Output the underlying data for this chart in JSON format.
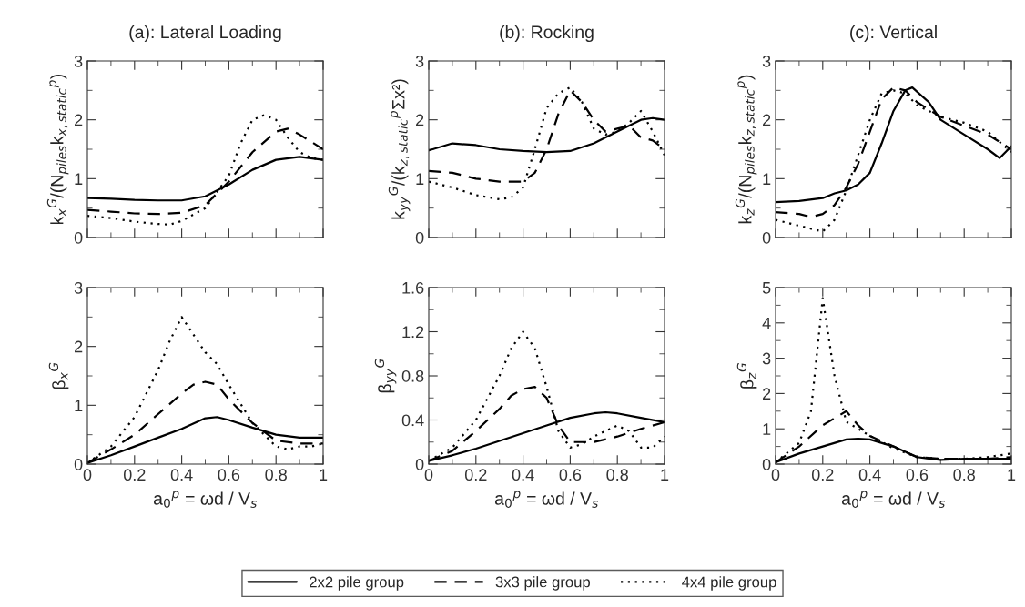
{
  "chart_data": [
    {
      "type": "line",
      "title": "(a): Lateral Loading",
      "ylabel": "k$_{x}$$^{G}$/(N$_{piles}$k$_{x,static}$$^{p}$)",
      "xlim": [
        0,
        1
      ],
      "xticks": [
        0,
        0.2,
        0.4,
        0.6,
        0.8,
        1
      ],
      "ylim": [
        0,
        3
      ],
      "yticks": [
        0,
        1,
        2,
        3
      ],
      "tick_labels": "y",
      "legend": "bottom",
      "series": [
        {
          "name": "2x2 pile group",
          "color": "#000000",
          "line_style": "solid",
          "x": [
            0,
            0.1,
            0.2,
            0.3,
            0.4,
            0.5,
            0.6,
            0.7,
            0.8,
            0.9,
            1.0
          ],
          "values": [
            0.67,
            0.66,
            0.64,
            0.63,
            0.63,
            0.7,
            0.9,
            1.15,
            1.32,
            1.37,
            1.32
          ]
        },
        {
          "name": "3x3 pile group",
          "color": "#000000",
          "line_style": "dashed",
          "x": [
            0,
            0.1,
            0.2,
            0.3,
            0.4,
            0.5,
            0.6,
            0.7,
            0.8,
            0.85,
            0.9,
            1.0
          ],
          "values": [
            0.47,
            0.44,
            0.41,
            0.4,
            0.42,
            0.55,
            0.95,
            1.45,
            1.8,
            1.85,
            1.75,
            1.5
          ]
        },
        {
          "name": "4x4 pile group",
          "color": "#000000",
          "line_style": "dotted",
          "x": [
            0,
            0.1,
            0.2,
            0.3,
            0.35,
            0.4,
            0.5,
            0.6,
            0.65,
            0.7,
            0.75,
            0.8,
            0.85,
            0.9,
            0.95,
            1.0
          ],
          "values": [
            0.37,
            0.33,
            0.27,
            0.23,
            0.22,
            0.28,
            0.5,
            1.05,
            1.6,
            2.0,
            2.08,
            2.0,
            1.7,
            1.45,
            1.35,
            1.32
          ]
        }
      ]
    },
    {
      "type": "line",
      "title": "(b): Rocking",
      "ylabel": "k$_{yy}$$^{G}$/(k$_{z,static}$$^{p}$Σx²)",
      "xlim": [
        0,
        1
      ],
      "xticks": [
        0,
        0.2,
        0.4,
        0.6,
        0.8,
        1
      ],
      "ylim": [
        0,
        3
      ],
      "yticks": [
        0,
        1,
        2,
        3
      ],
      "tick_labels": "y",
      "series": [
        {
          "color": "#000000",
          "line_style": "solid",
          "x": [
            0,
            0.1,
            0.2,
            0.3,
            0.4,
            0.5,
            0.6,
            0.7,
            0.8,
            0.9,
            0.95,
            1.0
          ],
          "values": [
            1.48,
            1.6,
            1.57,
            1.5,
            1.47,
            1.45,
            1.47,
            1.6,
            1.8,
            2.0,
            2.03,
            2.0
          ]
        },
        {
          "color": "#000000",
          "line_style": "dashed",
          "x": [
            0,
            0.1,
            0.2,
            0.3,
            0.4,
            0.45,
            0.5,
            0.55,
            0.6,
            0.65,
            0.7,
            0.75,
            0.8,
            0.85,
            0.9,
            0.95,
            1.0
          ],
          "values": [
            1.13,
            1.1,
            1.0,
            0.95,
            0.95,
            1.1,
            1.5,
            2.1,
            2.5,
            2.3,
            2.0,
            1.8,
            1.85,
            1.9,
            1.7,
            1.65,
            1.5
          ]
        },
        {
          "color": "#000000",
          "line_style": "dotted",
          "x": [
            0,
            0.1,
            0.2,
            0.3,
            0.35,
            0.4,
            0.45,
            0.5,
            0.55,
            0.6,
            0.65,
            0.7,
            0.75,
            0.8,
            0.85,
            0.9,
            0.95,
            1.0
          ],
          "values": [
            0.95,
            0.85,
            0.72,
            0.65,
            0.68,
            0.85,
            1.5,
            2.2,
            2.45,
            2.55,
            2.3,
            1.85,
            1.75,
            1.8,
            1.95,
            2.15,
            1.8,
            1.4
          ]
        }
      ]
    },
    {
      "type": "line",
      "title": "(c): Vertical",
      "ylabel": "k$_{z}$$^{G}$/(N$_{piles}$k$_{z,static}$$^{p}$)",
      "xlim": [
        0,
        1
      ],
      "xticks": [
        0,
        0.2,
        0.4,
        0.6,
        0.8,
        1
      ],
      "ylim": [
        0,
        3
      ],
      "yticks": [
        0,
        1,
        2,
        3
      ],
      "tick_labels": "y",
      "series": [
        {
          "color": "#000000",
          "line_style": "solid",
          "x": [
            0,
            0.1,
            0.2,
            0.25,
            0.3,
            0.35,
            0.4,
            0.45,
            0.5,
            0.55,
            0.58,
            0.65,
            0.7,
            0.8,
            0.9,
            0.95,
            1.0
          ],
          "values": [
            0.6,
            0.62,
            0.67,
            0.75,
            0.8,
            0.9,
            1.1,
            1.6,
            2.15,
            2.5,
            2.55,
            2.3,
            2.0,
            1.75,
            1.5,
            1.35,
            1.55
          ]
        },
        {
          "color": "#000000",
          "line_style": "dashed",
          "x": [
            0,
            0.1,
            0.15,
            0.2,
            0.25,
            0.3,
            0.35,
            0.4,
            0.45,
            0.5,
            0.55,
            0.6,
            0.7,
            0.8,
            0.9,
            1.0
          ],
          "values": [
            0.43,
            0.4,
            0.35,
            0.4,
            0.55,
            0.85,
            1.25,
            1.8,
            2.35,
            2.55,
            2.5,
            2.3,
            2.05,
            1.9,
            1.75,
            1.5
          ]
        },
        {
          "color": "#000000",
          "line_style": "dotted",
          "x": [
            0,
            0.1,
            0.2,
            0.25,
            0.3,
            0.35,
            0.4,
            0.45,
            0.5,
            0.55,
            0.6,
            0.7,
            0.8,
            0.9,
            1.0
          ],
          "values": [
            0.3,
            0.2,
            0.1,
            0.3,
            0.8,
            1.4,
            2.0,
            2.45,
            2.5,
            2.45,
            2.25,
            2.05,
            1.95,
            1.8,
            1.45
          ]
        }
      ]
    },
    {
      "type": "line",
      "ylabel": "β$_{x}$$^{G}$",
      "xlabel": "a$_{0}$$^{p}$ = ωd / V$_{s}$",
      "xlim": [
        0,
        1
      ],
      "xticks": [
        0,
        0.2,
        0.4,
        0.6,
        0.8,
        1
      ],
      "ylim": [
        0,
        3
      ],
      "yticks": [
        0,
        1,
        2,
        3
      ],
      "series": [
        {
          "color": "#000000",
          "line_style": "solid",
          "x": [
            0,
            0.1,
            0.2,
            0.3,
            0.4,
            0.5,
            0.55,
            0.6,
            0.7,
            0.8,
            0.9,
            1.0
          ],
          "values": [
            0.02,
            0.15,
            0.3,
            0.45,
            0.6,
            0.78,
            0.8,
            0.75,
            0.62,
            0.5,
            0.45,
            0.45
          ]
        },
        {
          "color": "#000000",
          "line_style": "dashed",
          "x": [
            0,
            0.1,
            0.2,
            0.3,
            0.4,
            0.45,
            0.5,
            0.55,
            0.6,
            0.7,
            0.8,
            0.9,
            1.0
          ],
          "values": [
            0.02,
            0.25,
            0.5,
            0.85,
            1.2,
            1.35,
            1.4,
            1.35,
            1.1,
            0.7,
            0.4,
            0.35,
            0.35
          ]
        },
        {
          "color": "#000000",
          "line_style": "dotted",
          "x": [
            0,
            0.1,
            0.2,
            0.3,
            0.35,
            0.4,
            0.45,
            0.5,
            0.55,
            0.6,
            0.7,
            0.8,
            0.85,
            0.9,
            0.95,
            1.0
          ],
          "values": [
            0.02,
            0.3,
            0.8,
            1.6,
            2.1,
            2.5,
            2.2,
            1.9,
            1.7,
            1.35,
            0.7,
            0.3,
            0.25,
            0.3,
            0.3,
            0.35
          ]
        }
      ]
    },
    {
      "type": "line",
      "ylabel": "β$_{yy}$$^{G}$",
      "xlabel": "a$_{0}$$^{p}$ = ωd / V$_{s}$",
      "xlim": [
        0,
        1
      ],
      "xticks": [
        0,
        0.2,
        0.4,
        0.6,
        0.8,
        1
      ],
      "ylim": [
        0,
        1.6
      ],
      "yticks": [
        0,
        0.4,
        0.8,
        1.2,
        1.6
      ],
      "series": [
        {
          "color": "#000000",
          "line_style": "solid",
          "x": [
            0,
            0.1,
            0.2,
            0.3,
            0.4,
            0.5,
            0.6,
            0.7,
            0.75,
            0.8,
            0.9,
            1.0
          ],
          "values": [
            0.03,
            0.08,
            0.14,
            0.21,
            0.28,
            0.35,
            0.42,
            0.46,
            0.47,
            0.46,
            0.42,
            0.38
          ]
        },
        {
          "color": "#000000",
          "line_style": "dashed",
          "x": [
            0,
            0.1,
            0.2,
            0.3,
            0.35,
            0.4,
            0.45,
            0.5,
            0.55,
            0.6,
            0.65,
            0.7,
            0.8,
            0.9,
            1.0
          ],
          "values": [
            0.03,
            0.12,
            0.3,
            0.5,
            0.62,
            0.68,
            0.7,
            0.6,
            0.35,
            0.2,
            0.2,
            0.2,
            0.25,
            0.32,
            0.38
          ]
        },
        {
          "color": "#000000",
          "line_style": "dotted",
          "x": [
            0,
            0.1,
            0.2,
            0.3,
            0.35,
            0.4,
            0.45,
            0.5,
            0.55,
            0.6,
            0.65,
            0.7,
            0.75,
            0.8,
            0.85,
            0.9,
            0.95,
            1.0
          ],
          "values": [
            0.03,
            0.15,
            0.4,
            0.8,
            1.05,
            1.2,
            1.05,
            0.7,
            0.3,
            0.15,
            0.18,
            0.25,
            0.3,
            0.35,
            0.3,
            0.15,
            0.15,
            0.25
          ]
        }
      ]
    },
    {
      "type": "line",
      "ylabel": "β$_{z}$$^{G}$",
      "xlabel": "a$_{0}$$^{p}$ = ωd / V$_{s}$",
      "xlim": [
        0,
        1
      ],
      "xticks": [
        0,
        0.2,
        0.4,
        0.6,
        0.8,
        1
      ],
      "ylim": [
        0,
        5
      ],
      "yticks": [
        0,
        1,
        2,
        3,
        4,
        5
      ],
      "series": [
        {
          "color": "#000000",
          "line_style": "solid",
          "x": [
            0,
            0.1,
            0.2,
            0.3,
            0.35,
            0.4,
            0.5,
            0.6,
            0.7,
            0.8,
            0.9,
            1.0
          ],
          "values": [
            0.05,
            0.3,
            0.5,
            0.7,
            0.72,
            0.7,
            0.5,
            0.2,
            0.12,
            0.15,
            0.15,
            0.15
          ]
        },
        {
          "color": "#000000",
          "line_style": "dashed",
          "x": [
            0,
            0.1,
            0.2,
            0.3,
            0.35,
            0.4,
            0.5,
            0.6,
            0.7,
            0.8,
            0.9,
            1.0
          ],
          "values": [
            0.05,
            0.5,
            1.1,
            1.5,
            1.1,
            0.8,
            0.5,
            0.2,
            0.15,
            0.15,
            0.15,
            0.2
          ]
        },
        {
          "color": "#000000",
          "line_style": "dotted",
          "x": [
            0,
            0.1,
            0.15,
            0.2,
            0.25,
            0.3,
            0.4,
            0.5,
            0.6,
            0.7,
            0.8,
            0.9,
            1.0
          ],
          "values": [
            0.05,
            0.6,
            1.5,
            4.7,
            2.5,
            1.2,
            0.8,
            0.45,
            0.2,
            0.15,
            0.15,
            0.2,
            0.3
          ]
        }
      ]
    }
  ]
}
